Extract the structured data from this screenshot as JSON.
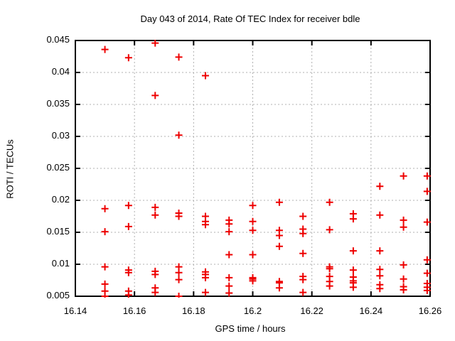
{
  "window": {
    "background": "#ffffff"
  },
  "chart_data": {
    "type": "scatter",
    "title": "Day 043 of 2014, Rate Of TEC Index for receiver bdle",
    "xlabel": "GPS time / hours",
    "ylabel": "ROTI / TECUs",
    "xlim": [
      16.14,
      16.26
    ],
    "ylim": [
      0.005,
      0.045
    ],
    "grid": true,
    "legend": "none",
    "marker": "plus",
    "colors": {
      "marker": "#ee0000",
      "grid": "#b0b0b0",
      "border": "#000000",
      "background": "#ffffff",
      "text": "#000000"
    },
    "x_ticks": {
      "values": [
        16.14,
        16.16,
        16.18,
        16.2,
        16.22,
        16.24,
        16.26
      ],
      "labels": [
        "16.14",
        "16.16",
        "16.18",
        "16.2",
        "16.22",
        "16.24",
        "16.26"
      ]
    },
    "y_ticks": {
      "values": [
        0.005,
        0.01,
        0.015,
        0.02,
        0.025,
        0.03,
        0.035,
        0.04,
        0.045
      ],
      "labels": [
        "0.005",
        "0.01",
        "0.015",
        "0.02",
        "0.025",
        "0.03",
        "0.035",
        "0.04",
        "0.045"
      ]
    },
    "series": [
      {
        "name": "ROTI",
        "points": [
          [
            16.15,
            0.0436
          ],
          [
            16.15,
            0.0187
          ],
          [
            16.15,
            0.0151
          ],
          [
            16.15,
            0.0096
          ],
          [
            16.15,
            0.0069
          ],
          [
            16.15,
            0.0058
          ],
          [
            16.15,
            0.005
          ],
          [
            16.158,
            0.0423
          ],
          [
            16.158,
            0.0192
          ],
          [
            16.158,
            0.0159
          ],
          [
            16.158,
            0.0091
          ],
          [
            16.158,
            0.0087
          ],
          [
            16.158,
            0.0058
          ],
          [
            16.158,
            0.0052
          ],
          [
            16.167,
            0.0446
          ],
          [
            16.167,
            0.0364
          ],
          [
            16.167,
            0.0189
          ],
          [
            16.167,
            0.0177
          ],
          [
            16.167,
            0.0089
          ],
          [
            16.167,
            0.0084
          ],
          [
            16.167,
            0.0063
          ],
          [
            16.167,
            0.0056
          ],
          [
            16.175,
            0.0424
          ],
          [
            16.175,
            0.0302
          ],
          [
            16.175,
            0.018
          ],
          [
            16.175,
            0.0175
          ],
          [
            16.175,
            0.0096
          ],
          [
            16.175,
            0.0087
          ],
          [
            16.175,
            0.0076
          ],
          [
            16.175,
            0.005
          ],
          [
            16.184,
            0.0395
          ],
          [
            16.184,
            0.0175
          ],
          [
            16.184,
            0.0167
          ],
          [
            16.184,
            0.0162
          ],
          [
            16.184,
            0.0088
          ],
          [
            16.184,
            0.0084
          ],
          [
            16.184,
            0.0079
          ],
          [
            16.184,
            0.0056
          ],
          [
            16.192,
            0.0169
          ],
          [
            16.192,
            0.0163
          ],
          [
            16.192,
            0.0151
          ],
          [
            16.192,
            0.0115
          ],
          [
            16.192,
            0.0079
          ],
          [
            16.192,
            0.0066
          ],
          [
            16.192,
            0.0055
          ],
          [
            16.2,
            0.0192
          ],
          [
            16.2,
            0.0167
          ],
          [
            16.2,
            0.0153
          ],
          [
            16.2,
            0.0115
          ],
          [
            16.2,
            0.0079
          ],
          [
            16.2,
            0.0077
          ],
          [
            16.2,
            0.0074
          ],
          [
            16.209,
            0.0197
          ],
          [
            16.209,
            0.0153
          ],
          [
            16.209,
            0.0145
          ],
          [
            16.209,
            0.0128
          ],
          [
            16.209,
            0.0073
          ],
          [
            16.209,
            0.0071
          ],
          [
            16.209,
            0.0063
          ],
          [
            16.217,
            0.0175
          ],
          [
            16.217,
            0.0155
          ],
          [
            16.217,
            0.0148
          ],
          [
            16.217,
            0.0117
          ],
          [
            16.217,
            0.0081
          ],
          [
            16.217,
            0.0076
          ],
          [
            16.217,
            0.0056
          ],
          [
            16.226,
            0.0197
          ],
          [
            16.226,
            0.0154
          ],
          [
            16.226,
            0.0096
          ],
          [
            16.226,
            0.0093
          ],
          [
            16.226,
            0.0081
          ],
          [
            16.226,
            0.0073
          ],
          [
            16.226,
            0.0066
          ],
          [
            16.234,
            0.0179
          ],
          [
            16.234,
            0.0171
          ],
          [
            16.234,
            0.0121
          ],
          [
            16.234,
            0.0091
          ],
          [
            16.234,
            0.008
          ],
          [
            16.234,
            0.0074
          ],
          [
            16.234,
            0.0071
          ],
          [
            16.234,
            0.0064
          ],
          [
            16.243,
            0.0222
          ],
          [
            16.243,
            0.0177
          ],
          [
            16.243,
            0.0121
          ],
          [
            16.243,
            0.0092
          ],
          [
            16.243,
            0.0082
          ],
          [
            16.243,
            0.0068
          ],
          [
            16.243,
            0.0062
          ],
          [
            16.251,
            0.0238
          ],
          [
            16.251,
            0.0169
          ],
          [
            16.251,
            0.0158
          ],
          [
            16.251,
            0.0099
          ],
          [
            16.251,
            0.0077
          ],
          [
            16.251,
            0.0065
          ],
          [
            16.251,
            0.006
          ],
          [
            16.259,
            0.0238
          ],
          [
            16.259,
            0.0214
          ],
          [
            16.259,
            0.0166
          ],
          [
            16.259,
            0.0107
          ],
          [
            16.259,
            0.0086
          ],
          [
            16.259,
            0.007
          ],
          [
            16.259,
            0.0064
          ],
          [
            16.259,
            0.0059
          ]
        ]
      }
    ]
  }
}
